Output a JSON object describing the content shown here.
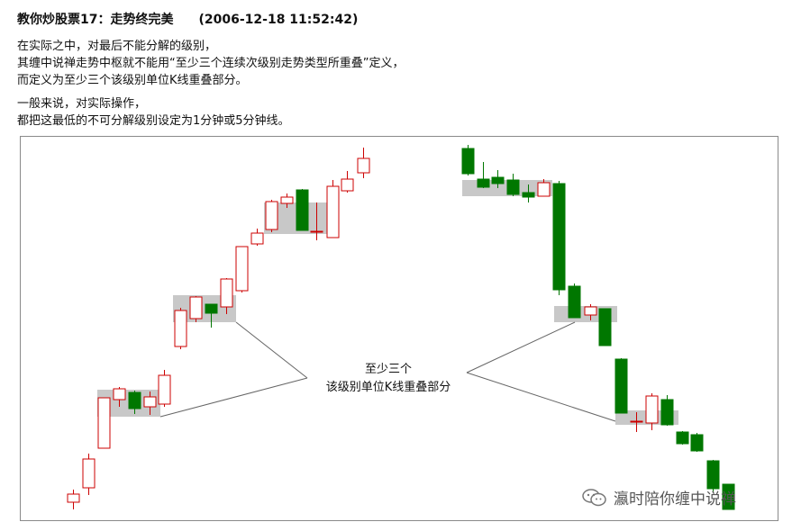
{
  "article": {
    "title": "教你炒股票17：走势终完美",
    "timestamp": "(2006-12-18 11:52:42)",
    "paragraph1": [
      "在实际之中，对最后不能分解的级别，",
      "其缠中说禅走势中枢就不能用“至少三个连续次级别走势类型所重叠”定义，",
      "而定义为至少三个该级别单位K线重叠部分。"
    ],
    "paragraph2": [
      "一般来说，对实际操作，",
      "都把这最低的不可分解级别设定为1分钟或5分钟线。"
    ]
  },
  "diagram": {
    "label_line1": "至少三个",
    "label_line2": "该级别单位K线重叠部分",
    "colors": {
      "up_candle": "#cc0000",
      "down_candle": "#007700",
      "overlap_zone": "#c8c8c8",
      "pointer_line": "#666666"
    }
  },
  "watermark": {
    "icon": "wechat-icon",
    "text": "瀛时陪你缠中说禅"
  }
}
